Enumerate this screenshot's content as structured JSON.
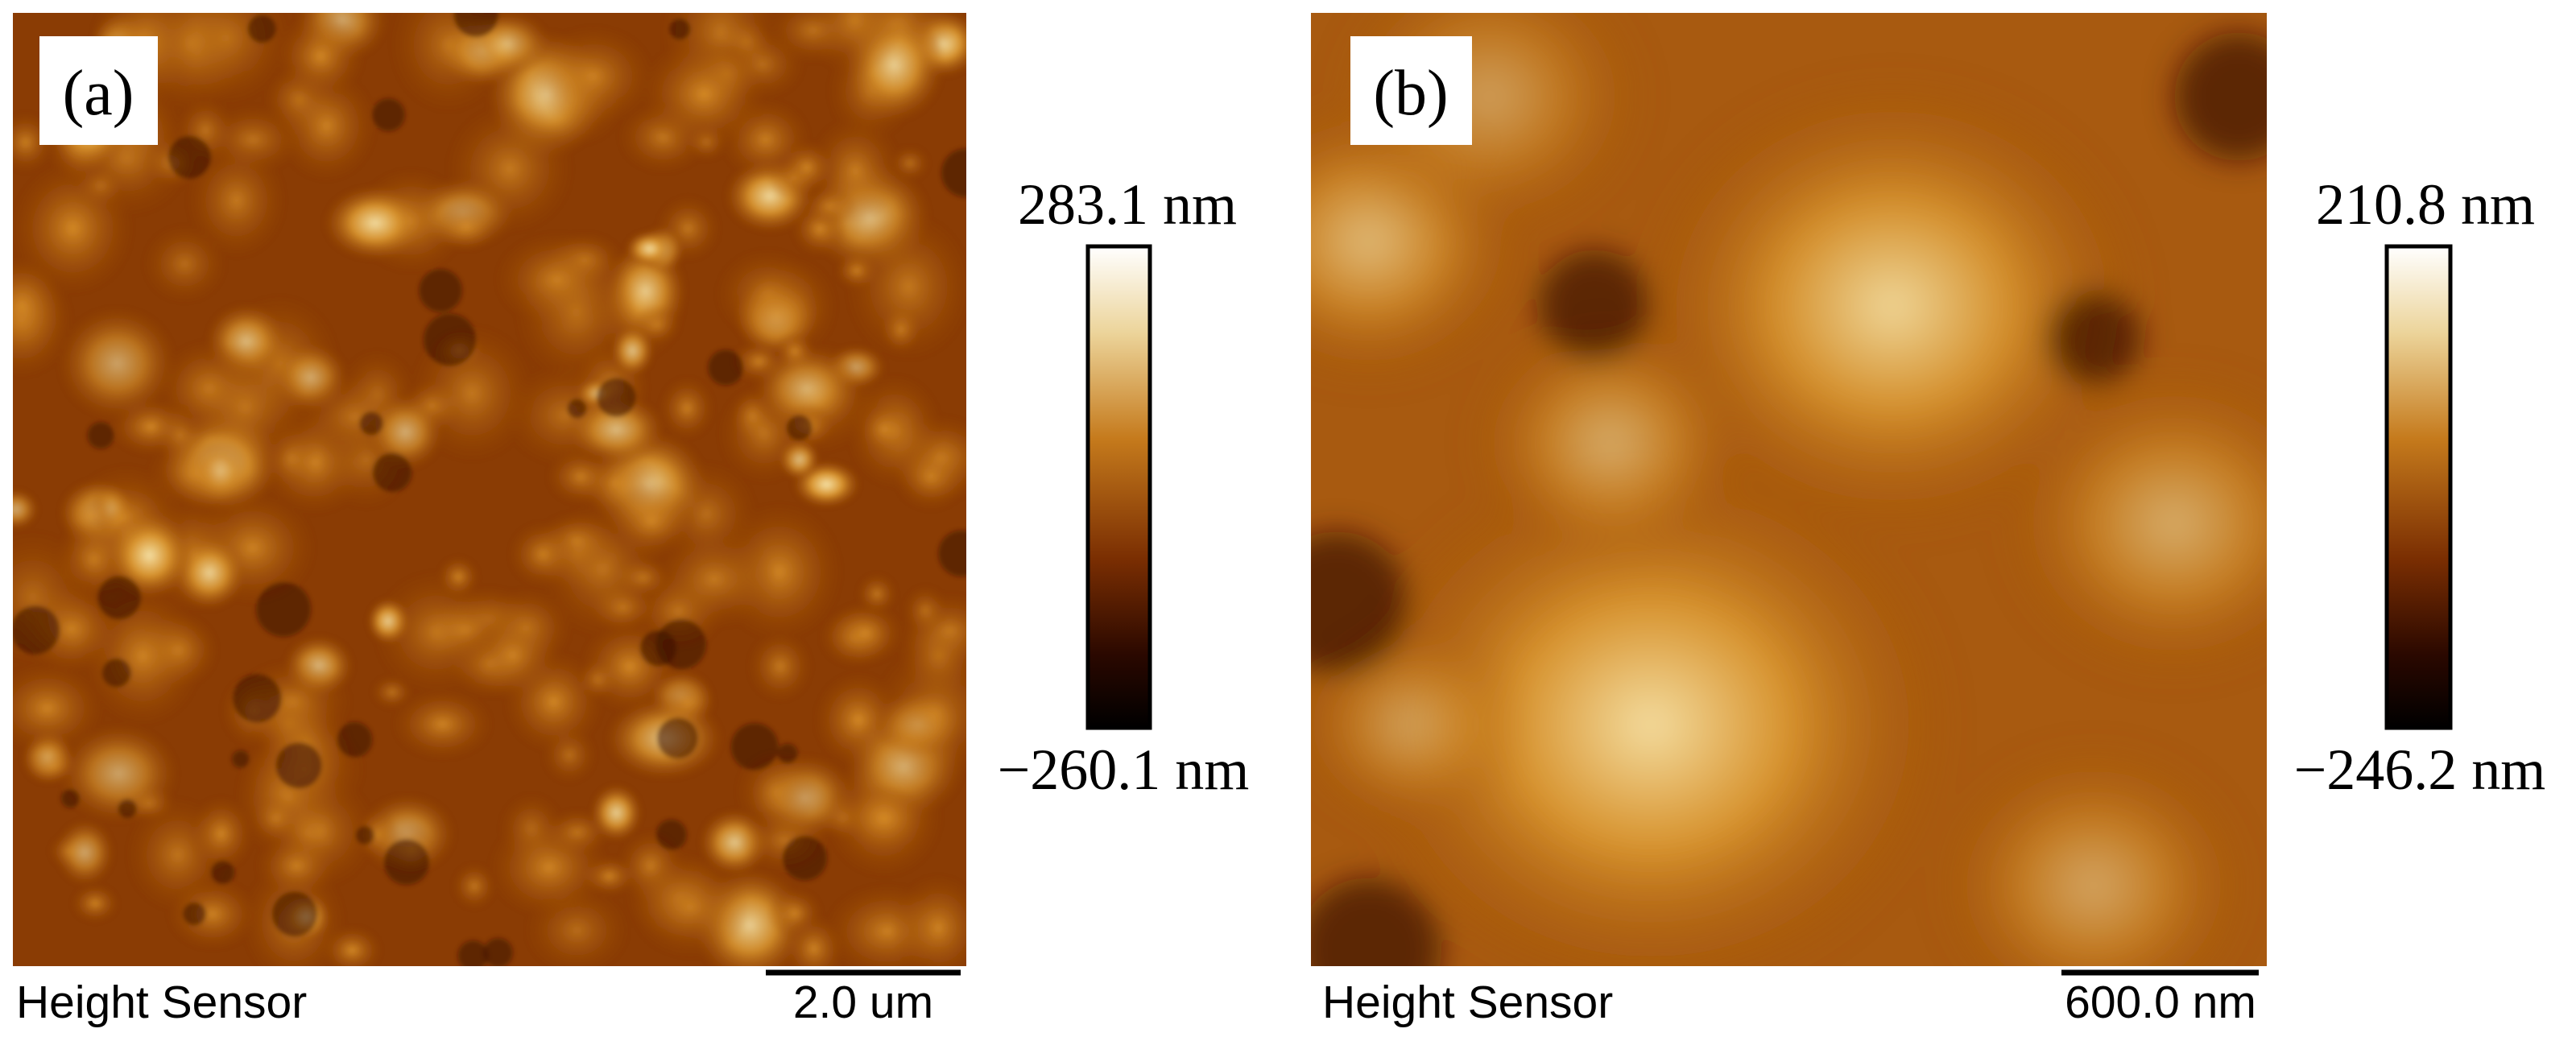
{
  "panels": [
    {
      "label": "(a)",
      "colorbar": {
        "max": "283.1 nm",
        "min": "−260.1 nm"
      },
      "caption": "Height Sensor",
      "scale_bar": "2.0 um"
    },
    {
      "label": "(b)",
      "colorbar": {
        "max": "210.8 nm",
        "min": "−246.2 nm"
      },
      "caption": "Height Sensor",
      "scale_bar": "600.0 nm"
    }
  ]
}
